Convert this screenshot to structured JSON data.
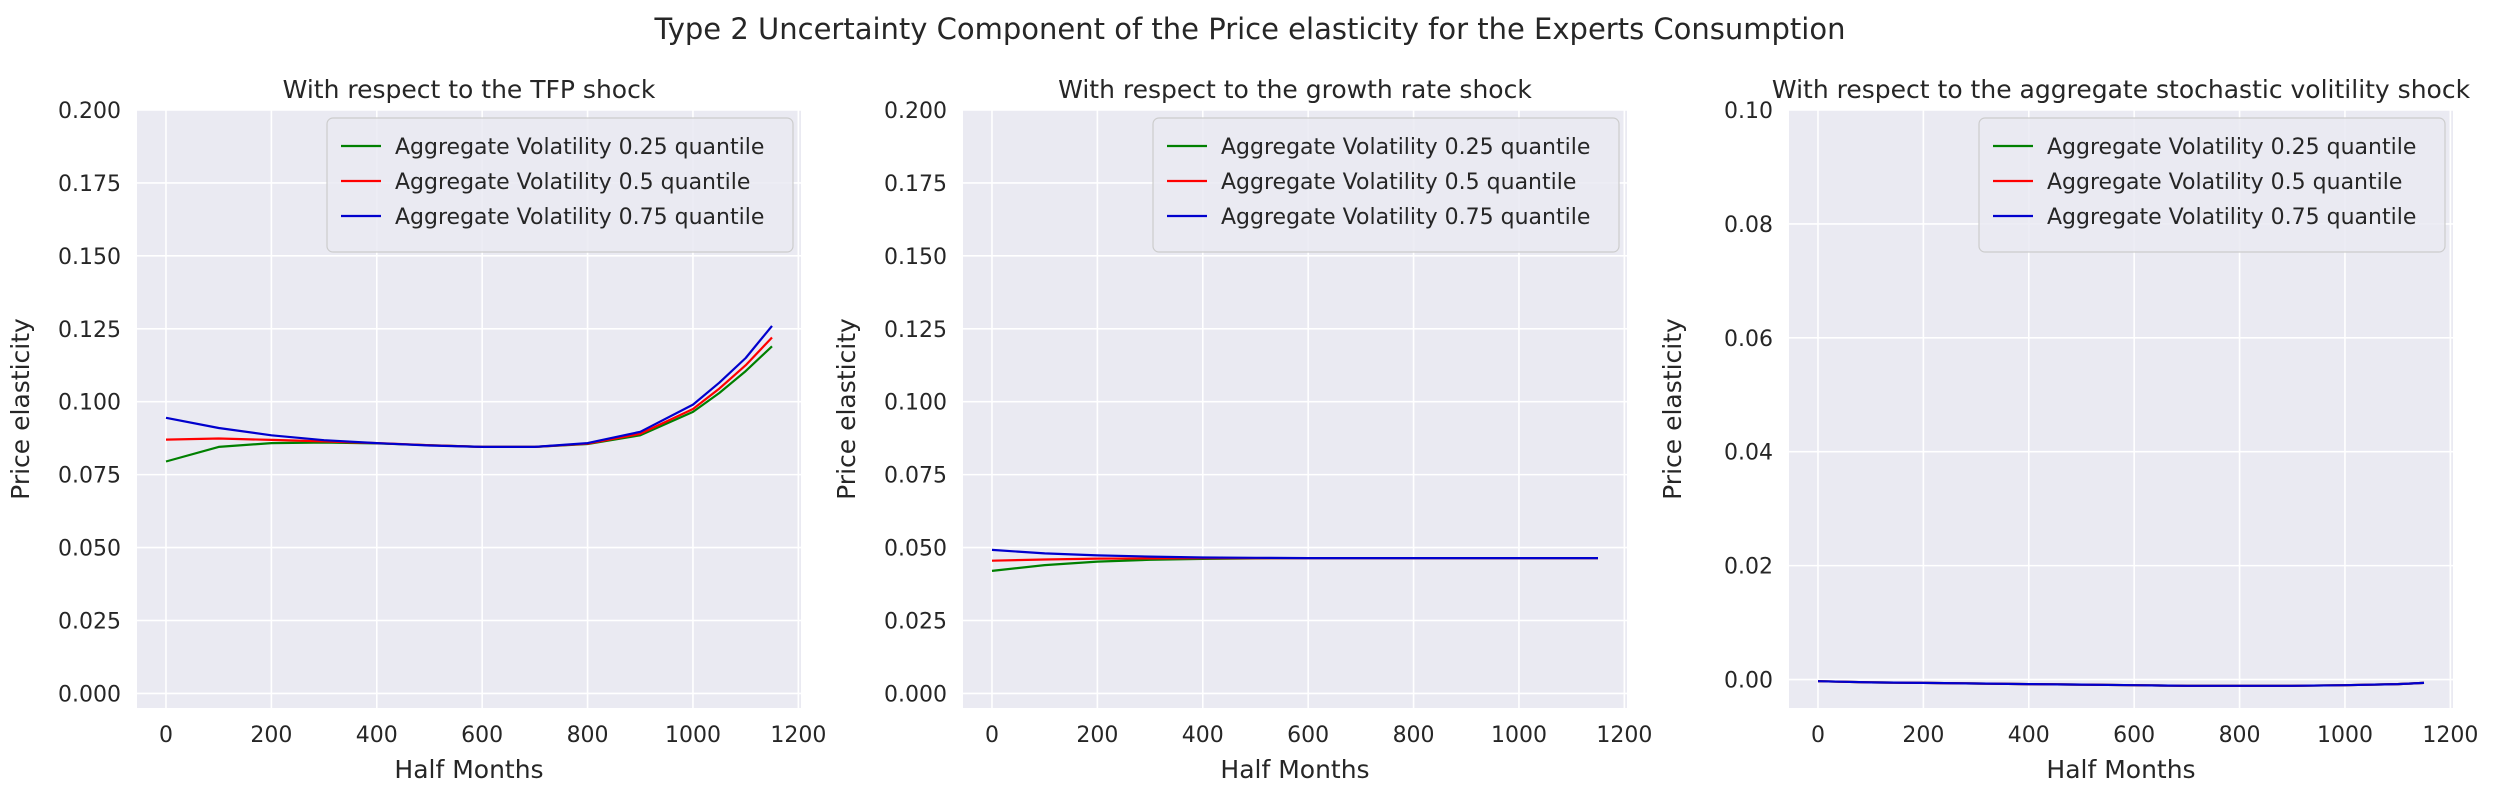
{
  "figure": {
    "suptitle": "Type 2 Uncertainty Component of the Price elasticity for the Experts Consumption"
  },
  "chart_data": [
    {
      "type": "line",
      "title": "With respect to the TFP shock",
      "xlabel": "Half Months",
      "ylabel": "Price elasticity",
      "xlim": [
        -55,
        1205
      ],
      "ylim": [
        -0.005,
        0.2
      ],
      "xticks": [
        0,
        200,
        400,
        600,
        800,
        1000,
        1200
      ],
      "yticks": [
        0.0,
        0.025,
        0.05,
        0.075,
        0.1,
        0.125,
        0.15,
        0.175,
        0.2
      ],
      "ytick_decimals": 3,
      "grid": true,
      "legend": "top-right",
      "x": [
        0,
        100,
        200,
        300,
        400,
        500,
        600,
        700,
        800,
        900,
        1000,
        1050,
        1100,
        1150
      ],
      "series": [
        {
          "name": "Aggregate Volatility 0.25 quantile",
          "color": "#008000",
          "values": [
            0.0795,
            0.0845,
            0.0858,
            0.086,
            0.0857,
            0.0851,
            0.0845,
            0.0845,
            0.0855,
            0.0885,
            0.0965,
            0.103,
            0.1105,
            0.119
          ]
        },
        {
          "name": "Aggregate Volatility 0.5 quantile",
          "color": "#ff0000",
          "values": [
            0.087,
            0.0874,
            0.0869,
            0.0864,
            0.0858,
            0.0851,
            0.0845,
            0.0845,
            0.0856,
            0.089,
            0.0975,
            0.1045,
            0.1125,
            0.122
          ]
        },
        {
          "name": "Aggregate Volatility 0.75 quantile",
          "color": "#0000cd",
          "values": [
            0.0945,
            0.091,
            0.0885,
            0.0868,
            0.0858,
            0.085,
            0.0845,
            0.0845,
            0.0858,
            0.0897,
            0.099,
            0.1065,
            0.115,
            0.126
          ]
        }
      ]
    },
    {
      "type": "line",
      "title": "With respect to the growth rate shock",
      "xlabel": "Half Months",
      "ylabel": "Price elasticity",
      "xlim": [
        -55,
        1205
      ],
      "ylim": [
        -0.005,
        0.2
      ],
      "xticks": [
        0,
        200,
        400,
        600,
        800,
        1000,
        1200
      ],
      "yticks": [
        0.0,
        0.025,
        0.05,
        0.075,
        0.1,
        0.125,
        0.15,
        0.175,
        0.2
      ],
      "ytick_decimals": 3,
      "grid": true,
      "legend": "top-right",
      "x": [
        0,
        100,
        200,
        300,
        400,
        500,
        600,
        700,
        800,
        900,
        1000,
        1100,
        1150
      ],
      "series": [
        {
          "name": "Aggregate Volatility 0.25 quantile",
          "color": "#008000",
          "values": [
            0.042,
            0.044,
            0.0452,
            0.0458,
            0.0461,
            0.0463,
            0.0464,
            0.0464,
            0.0464,
            0.0464,
            0.0464,
            0.0464,
            0.0464
          ]
        },
        {
          "name": "Aggregate Volatility 0.5 quantile",
          "color": "#ff0000",
          "values": [
            0.0455,
            0.0459,
            0.0462,
            0.0463,
            0.0464,
            0.0464,
            0.0464,
            0.0464,
            0.0464,
            0.0464,
            0.0464,
            0.0464,
            0.0464
          ]
        },
        {
          "name": "Aggregate Volatility 0.75 quantile",
          "color": "#0000cd",
          "values": [
            0.0492,
            0.048,
            0.0473,
            0.0469,
            0.0466,
            0.0465,
            0.0464,
            0.0464,
            0.0464,
            0.0464,
            0.0464,
            0.0464,
            0.0464
          ]
        }
      ]
    },
    {
      "type": "line",
      "title": "With respect to the aggregate stochastic volitility shock",
      "xlabel": "Half Months",
      "ylabel": "Price elasticity",
      "xlim": [
        -55,
        1205
      ],
      "ylim": [
        -0.005,
        0.1
      ],
      "xticks": [
        0,
        200,
        400,
        600,
        800,
        1000,
        1200
      ],
      "yticks": [
        0.0,
        0.02,
        0.04,
        0.06,
        0.08,
        0.1
      ],
      "ytick_decimals": 2,
      "grid": true,
      "legend": "top-right",
      "x": [
        0,
        100,
        200,
        300,
        400,
        500,
        600,
        700,
        800,
        900,
        1000,
        1100,
        1150
      ],
      "series": [
        {
          "name": "Aggregate Volatility 0.25 quantile",
          "color": "#008000",
          "values": [
            -0.0003,
            -0.0005,
            -0.0006,
            -0.0007,
            -0.0008,
            -0.0009,
            -0.001,
            -0.0011,
            -0.0011,
            -0.0011,
            -0.001,
            -0.0008,
            -0.0006
          ]
        },
        {
          "name": "Aggregate Volatility 0.5 quantile",
          "color": "#ff0000",
          "values": [
            -0.0003,
            -0.0005,
            -0.0006,
            -0.0007,
            -0.0008,
            -0.0009,
            -0.001,
            -0.0011,
            -0.0011,
            -0.0011,
            -0.001,
            -0.0008,
            -0.0006
          ]
        },
        {
          "name": "Aggregate Volatility 0.75 quantile",
          "color": "#0000cd",
          "values": [
            -0.0003,
            -0.0005,
            -0.0006,
            -0.0007,
            -0.0008,
            -0.0009,
            -0.001,
            -0.0011,
            -0.0011,
            -0.0011,
            -0.001,
            -0.0008,
            -0.0006
          ]
        }
      ]
    }
  ]
}
